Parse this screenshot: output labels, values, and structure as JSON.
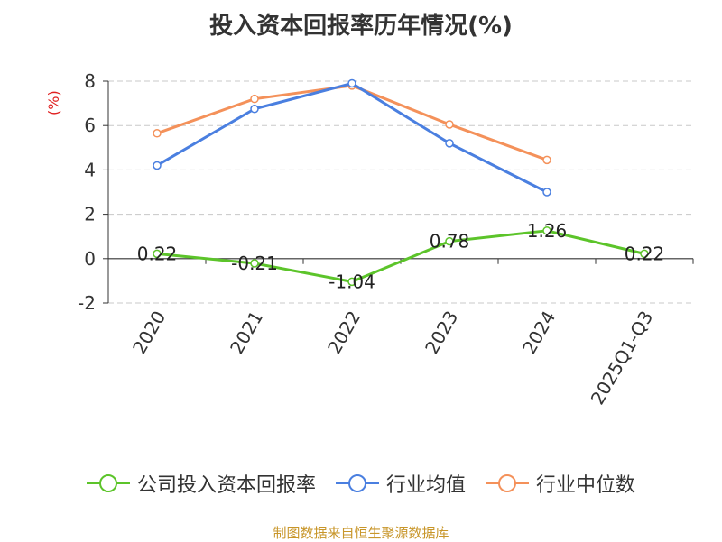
{
  "page": {
    "title": "投入资本回报率历年情况(%)",
    "source": "制图数据来自恒生聚源数据库"
  },
  "chart_data": {
    "type": "line",
    "title": "投入资本回报率历年情况(%)",
    "ylabel": "(%)",
    "xlabel": "",
    "ylim": [
      -2,
      8
    ],
    "yticks": [
      -2,
      0,
      2,
      4,
      6,
      8
    ],
    "grid": true,
    "legend_position": "bottom",
    "categories": [
      "2020",
      "2021",
      "2022",
      "2023",
      "2024",
      "2025Q1-Q3"
    ],
    "series": [
      {
        "name": "公司投入资本回报率",
        "color": "#5cc42a",
        "values": [
          0.22,
          -0.21,
          -1.04,
          0.78,
          1.26,
          0.22
        ],
        "labels": [
          "0.22",
          "-0.21",
          "-1.04",
          "0.78",
          "1.26",
          "0.22"
        ]
      },
      {
        "name": "行业均值",
        "color": "#4a7fe0",
        "values": [
          4.2,
          6.75,
          7.9,
          5.2,
          3.0,
          null
        ]
      },
      {
        "name": "行业中位数",
        "color": "#f4915a",
        "values": [
          5.65,
          7.2,
          7.8,
          6.05,
          4.45,
          null
        ]
      }
    ]
  }
}
